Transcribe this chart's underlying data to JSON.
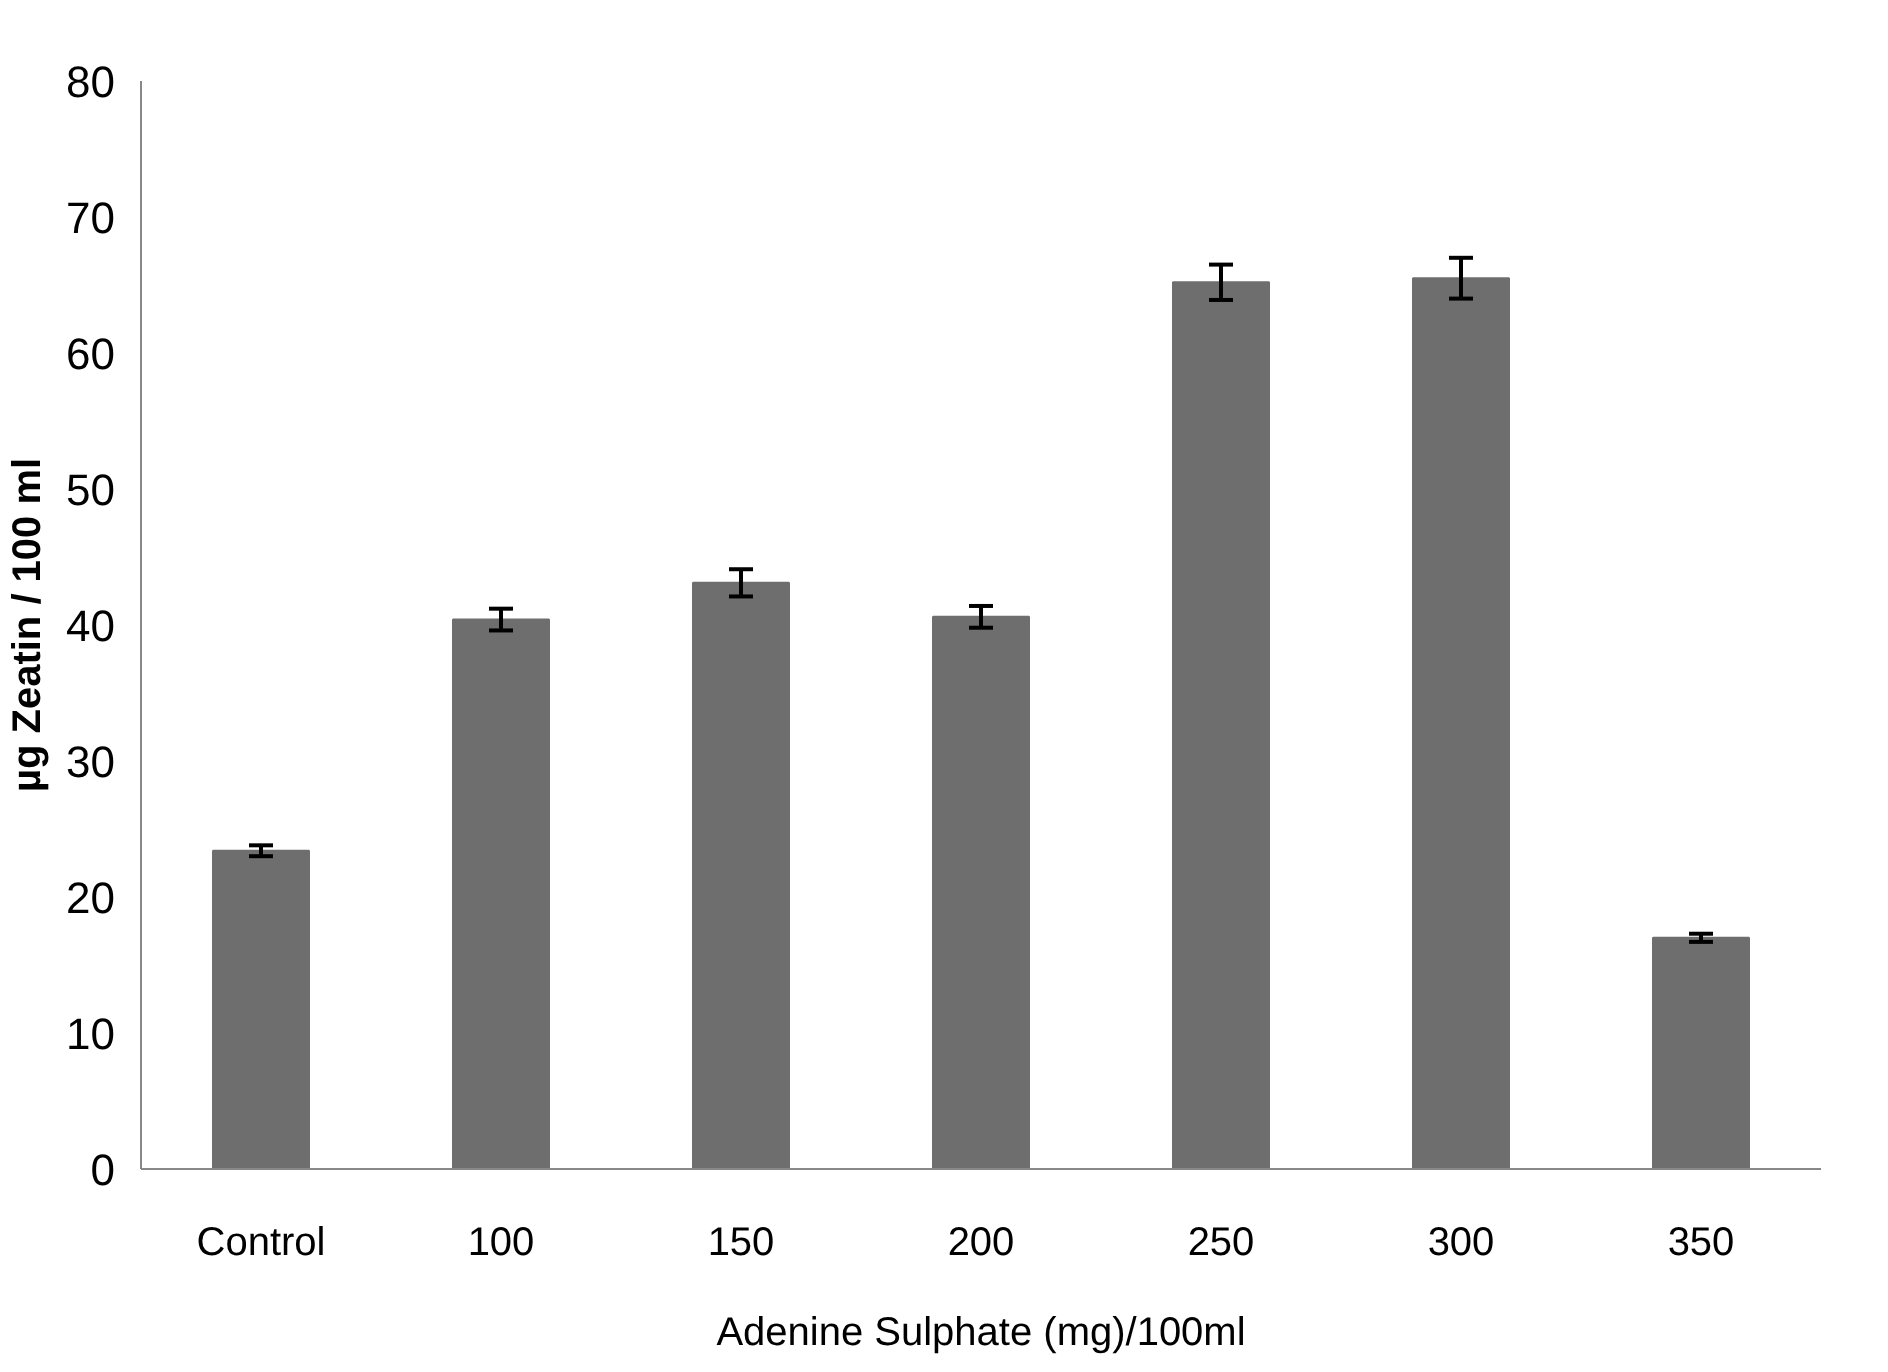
{
  "chart_data": {
    "type": "bar",
    "xlabel": "Adenine Sulphate (mg)/100ml",
    "ylabel": "µg Zeatin / 100 ml",
    "categories": [
      "Control",
      "100",
      "150",
      "200",
      "250",
      "300",
      "350"
    ],
    "values": [
      23.4,
      40.4,
      43.1,
      40.6,
      65.2,
      65.5,
      17.0
    ],
    "errors": [
      0.4,
      0.8,
      1.0,
      0.8,
      1.3,
      1.5,
      0.3
    ],
    "color": "#6e6e6e",
    "ylim": [
      0,
      80
    ],
    "yticks": [
      0,
      10,
      20,
      30,
      40,
      50,
      60,
      70,
      80
    ],
    "grid": false
  }
}
